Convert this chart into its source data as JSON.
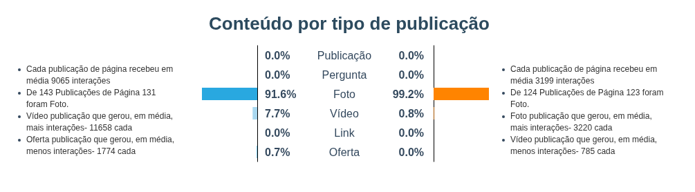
{
  "chart_data": [
    {
      "type": "bar",
      "orientation": "horizontal",
      "title": "Conteúdo por tipo de publicação",
      "tick_labels": "y",
      "categories": [
        "Publicação",
        "Pergunta",
        "Foto",
        "Vídeo",
        "Link",
        "Oferta"
      ],
      "colors": [
        "#29a8e0",
        "#29a8e0",
        "#29a8e0",
        "#a9d8f0",
        "#29a8e0",
        "#29a8e0"
      ],
      "values": [
        0,
        0,
        91.6,
        7.7,
        0,
        0.7
      ],
      "value_labels": [
        "0.0%",
        "0.0%",
        "91.6%",
        "7.7%",
        "0.0%",
        "0.7%"
      ],
      "annotations": [
        "Cada publicação de página recebeu em média 9065 interações",
        "De 143 Publicações de Página 131 foram Foto.",
        "Vídeo publicação que gerou, em média, mais interações- 11658 cada",
        "Oferta publicação que gerou, em média, menos interações- 1774 cada"
      ]
    },
    {
      "type": "bar",
      "orientation": "horizontal",
      "tick_labels": "y",
      "categories": [
        null,
        null,
        null,
        null,
        null,
        null
      ],
      "colors": [
        "#ff8400",
        "#ff8400",
        "#ff8400",
        "#ff8400",
        "#ff8400",
        "#ff8400"
      ],
      "values": [
        0,
        0,
        99.2,
        0.8,
        0,
        0
      ],
      "value_labels": [
        "0.0%",
        "0.0%",
        "99.2%",
        "0.8%",
        "0.0%",
        "0.0%"
      ],
      "annotations": [
        "Cada publicação de página recebeu em média 3199 interações",
        "De 124 Publicações de Página 123 foram Foto.",
        "Foto publicação que gerou, em média, mais interações- 3220 cada",
        "Vídeo publicação que gerou, em média, menos interações- 785 cada"
      ]
    }
  ]
}
